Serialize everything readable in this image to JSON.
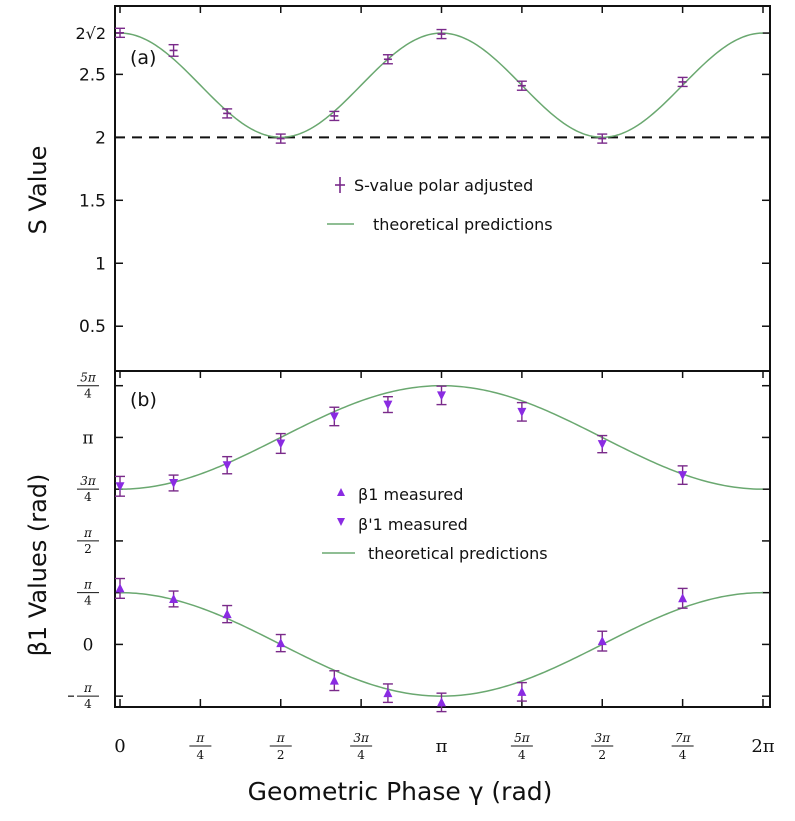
{
  "chart_data": [
    {
      "type": "scatter",
      "panel_label": "(a)",
      "ylabel": "S Value",
      "xlim": [
        0,
        6.2832
      ],
      "ylim": [
        0.2,
        2.9
      ],
      "y_ticks": [
        {
          "value": 0.5,
          "label": "0.5"
        },
        {
          "value": 1.0,
          "label": "1"
        },
        {
          "value": 1.5,
          "label": "1.5"
        },
        {
          "value": 2.0,
          "label": "2"
        },
        {
          "value": 2.5,
          "label": "2.5"
        },
        {
          "value": 2.828,
          "label": "2√2"
        }
      ],
      "reference_line": {
        "y": 2.0,
        "style": "dashed"
      },
      "legend": [
        "S-value  polar adjusted",
        "theoretical predictions"
      ],
      "series": [
        {
          "name": "S-value  polar adjusted",
          "marker": "plus",
          "color": "#7a2a8a",
          "x": [
            0.0,
            0.5236,
            1.0472,
            1.5708,
            2.0944,
            2.618,
            3.1416,
            3.927,
            4.7124,
            5.4978
          ],
          "y": [
            2.83,
            2.69,
            2.19,
            1.99,
            2.17,
            2.62,
            2.82,
            2.41,
            1.99,
            2.44
          ],
          "error": [
            0.02,
            0.03,
            0.02,
            0.02,
            0.02,
            0.02,
            0.02,
            0.02,
            0.02,
            0.02
          ]
        },
        {
          "name": "theoretical predictions",
          "line": true,
          "color": "#6aa870",
          "formula": "S = 2.414 + 0.414*cos(2*gamma)"
        }
      ]
    },
    {
      "type": "scatter",
      "panel_label": "(b)",
      "ylabel": "β1 Values (rad)",
      "xlabel": "Geometric Phase γ (rad)",
      "xlim": [
        0,
        6.2832
      ],
      "ylim": [
        -0.95,
        4.15
      ],
      "x_ticks": [
        {
          "value": 0,
          "num": "0",
          "den": ""
        },
        {
          "value": 0.7854,
          "num": "π",
          "den": "4"
        },
        {
          "value": 1.5708,
          "num": "π",
          "den": "2"
        },
        {
          "value": 2.3562,
          "num": "3π",
          "den": "4"
        },
        {
          "value": 3.1416,
          "num": "π",
          "den": ""
        },
        {
          "value": 3.927,
          "num": "5π",
          "den": "4"
        },
        {
          "value": 4.7124,
          "num": "3π",
          "den": "2"
        },
        {
          "value": 5.4978,
          "num": "7π",
          "den": "4"
        },
        {
          "value": 6.2832,
          "num": "2π",
          "den": ""
        }
      ],
      "y_ticks": [
        {
          "value": -0.7854,
          "num": "π",
          "den": "4",
          "neg": true
        },
        {
          "value": 0,
          "num": "0",
          "den": "",
          "neg": false
        },
        {
          "value": 0.7854,
          "num": "π",
          "den": "4",
          "neg": false
        },
        {
          "value": 1.5708,
          "num": "π",
          "den": "2",
          "neg": false
        },
        {
          "value": 2.3562,
          "num": "3π",
          "den": "4",
          "neg": false
        },
        {
          "value": 3.1416,
          "num": "π",
          "den": "",
          "neg": false
        },
        {
          "value": 3.927,
          "num": "5π",
          "den": "4",
          "neg": false
        }
      ],
      "legend": [
        "β1 measured",
        "β'1 measured",
        "theoretical predictions"
      ],
      "series": [
        {
          "name": "β1 measured",
          "marker": "triangle-up",
          "color": "#8a2be2",
          "x": [
            0.0,
            0.5236,
            1.0472,
            1.5708,
            2.0944,
            2.618,
            3.1416,
            3.927,
            4.7124,
            5.4978
          ],
          "y": [
            0.85,
            0.69,
            0.46,
            0.02,
            -0.55,
            -0.74,
            -0.88,
            -0.72,
            0.05,
            0.7
          ],
          "error": [
            0.15,
            0.12,
            0.13,
            0.13,
            0.15,
            0.14,
            0.14,
            0.14,
            0.15,
            0.15
          ]
        },
        {
          "name": "β'1 measured",
          "marker": "triangle-down",
          "color": "#8a2be2",
          "x": [
            0.0,
            0.5236,
            1.0472,
            1.5708,
            2.0944,
            2.618,
            3.1416,
            3.927,
            4.7124,
            5.4978
          ],
          "y": [
            2.4,
            2.45,
            2.72,
            3.05,
            3.46,
            3.64,
            3.78,
            3.53,
            3.04,
            2.57
          ],
          "error": [
            0.15,
            0.12,
            0.13,
            0.15,
            0.14,
            0.12,
            0.14,
            0.14,
            0.13,
            0.14
          ]
        },
        {
          "name": "theoretical predictions",
          "line": true,
          "color": "#6aa870",
          "formula": "beta1 = 0.7854*cos(gamma); beta1' = 3.1416 - 0.7854*cos(gamma)"
        }
      ]
    }
  ]
}
